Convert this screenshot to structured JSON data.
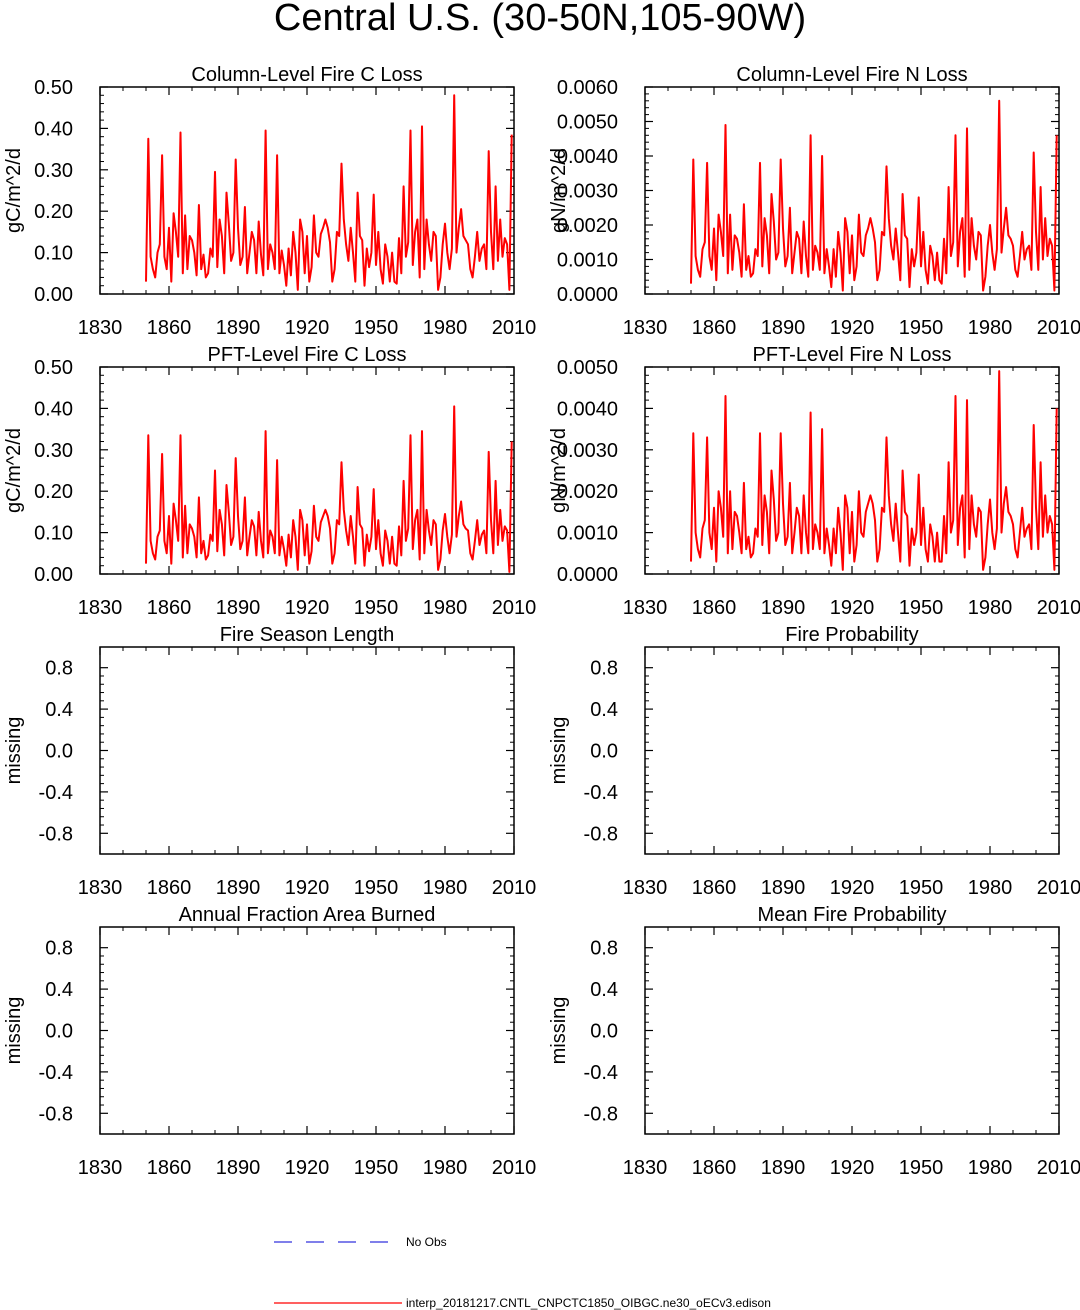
{
  "title": "Central U.S. (30-50N,105-90W)",
  "colors": {
    "model": "#ff0000",
    "obs": "#3333dd",
    "axis": "#000000"
  },
  "legend": {
    "obs_label": "No Obs",
    "model_label": "interp_20181217.CNTL_CNPCTC1850_OIBGC.ne30_oECv3.edison"
  },
  "chart_data": [
    {
      "id": "column-fire-c-loss",
      "type": "line",
      "title": "Column-Level Fire C Loss",
      "ylabel": "gC/m^2/d",
      "xlim": [
        1830,
        2010
      ],
      "ylim": [
        0,
        0.5
      ],
      "xticks": [
        "1830",
        "1860",
        "1890",
        "1920",
        "1950",
        "1980",
        "2010"
      ],
      "yticks": [
        "0.00",
        "0.10",
        "0.20",
        "0.30",
        "0.40",
        "0.50"
      ],
      "x_start": 1850,
      "values": [
        0.03,
        0.375,
        0.09,
        0.06,
        0.04,
        0.1,
        0.12,
        0.335,
        0.09,
        0.06,
        0.16,
        0.03,
        0.195,
        0.15,
        0.09,
        0.39,
        0.05,
        0.19,
        0.06,
        0.14,
        0.13,
        0.1,
        0.045,
        0.215,
        0.06,
        0.095,
        0.04,
        0.05,
        0.11,
        0.09,
        0.295,
        0.065,
        0.18,
        0.14,
        0.05,
        0.245,
        0.17,
        0.08,
        0.1,
        0.325,
        0.16,
        0.07,
        0.09,
        0.21,
        0.05,
        0.1,
        0.15,
        0.13,
        0.05,
        0.175,
        0.095,
        0.045,
        0.395,
        0.06,
        0.12,
        0.1,
        0.06,
        0.335,
        0.05,
        0.105,
        0.07,
        0.02,
        0.11,
        0.045,
        0.15,
        0.1,
        0.01,
        0.18,
        0.15,
        0.05,
        0.14,
        0.03,
        0.065,
        0.19,
        0.1,
        0.09,
        0.145,
        0.16,
        0.18,
        0.16,
        0.125,
        0.03,
        0.06,
        0.15,
        0.14,
        0.315,
        0.18,
        0.12,
        0.08,
        0.16,
        0.1,
        0.03,
        0.245,
        0.14,
        0.13,
        0.02,
        0.11,
        0.065,
        0.1,
        0.24,
        0.07,
        0.15,
        0.06,
        0.025,
        0.12,
        0.09,
        0.03,
        0.1,
        0.03,
        0.025,
        0.135,
        0.05,
        0.26,
        0.09,
        0.125,
        0.395,
        0.07,
        0.15,
        0.18,
        0.04,
        0.405,
        0.06,
        0.18,
        0.12,
        0.08,
        0.15,
        0.14,
        0.01,
        0.04,
        0.12,
        0.17,
        0.1,
        0.06,
        0.11,
        0.48,
        0.1,
        0.16,
        0.205,
        0.14,
        0.13,
        0.12,
        0.06,
        0.04,
        0.09,
        0.15,
        0.08,
        0.11,
        0.12,
        0.06,
        0.345,
        0.15,
        0.06,
        0.26,
        0.08,
        0.18,
        0.09,
        0.135,
        0.12,
        0.01,
        0.385
      ]
    },
    {
      "id": "column-fire-n-loss",
      "type": "line",
      "title": "Column-Level Fire N Loss",
      "ylabel": "gN/m^2/d",
      "xlim": [
        1830,
        2010
      ],
      "ylim": [
        0,
        0.006
      ],
      "xticks": [
        "1830",
        "1860",
        "1890",
        "1920",
        "1950",
        "1980",
        "2010"
      ],
      "yticks": [
        "0.0000",
        "0.0010",
        "0.0020",
        "0.0030",
        "0.0040",
        "0.0050",
        "0.0060"
      ],
      "x_start": 1850,
      "values": [
        0.0003,
        0.0039,
        0.0011,
        0.0007,
        0.0005,
        0.0013,
        0.0015,
        0.0038,
        0.0011,
        0.0007,
        0.0019,
        0.0004,
        0.0023,
        0.0018,
        0.0011,
        0.0049,
        0.0006,
        0.0023,
        0.0007,
        0.0017,
        0.0016,
        0.0012,
        0.0005,
        0.0026,
        0.0007,
        0.0011,
        0.0005,
        0.0006,
        0.0013,
        0.0011,
        0.0038,
        0.0008,
        0.0022,
        0.0017,
        0.0006,
        0.0029,
        0.0021,
        0.001,
        0.0012,
        0.0039,
        0.0019,
        0.0008,
        0.0011,
        0.0025,
        0.0006,
        0.0012,
        0.0018,
        0.0016,
        0.0006,
        0.0021,
        0.0011,
        0.0005,
        0.0046,
        0.0007,
        0.0014,
        0.0012,
        0.0007,
        0.004,
        0.0006,
        0.0013,
        0.0008,
        0.0002,
        0.0013,
        0.0005,
        0.0018,
        0.0012,
        0.0001,
        0.0022,
        0.0018,
        0.0006,
        0.0017,
        0.0004,
        0.0008,
        0.0023,
        0.0012,
        0.0011,
        0.0017,
        0.0019,
        0.0022,
        0.0019,
        0.0015,
        0.0004,
        0.0007,
        0.0018,
        0.0017,
        0.0037,
        0.0022,
        0.0014,
        0.001,
        0.0019,
        0.0012,
        0.0004,
        0.0029,
        0.0017,
        0.0016,
        0.0002,
        0.0013,
        0.0008,
        0.0012,
        0.0028,
        0.0008,
        0.0018,
        0.0007,
        0.0003,
        0.0014,
        0.0011,
        0.0004,
        0.0012,
        0.0004,
        0.0003,
        0.0016,
        0.0006,
        0.0031,
        0.0011,
        0.0015,
        0.0046,
        0.0008,
        0.0018,
        0.0022,
        0.0005,
        0.0048,
        0.0007,
        0.0022,
        0.0014,
        0.001,
        0.0018,
        0.0017,
        0.0001,
        0.0005,
        0.0014,
        0.002,
        0.0012,
        0.0007,
        0.0013,
        0.0056,
        0.0012,
        0.0019,
        0.0025,
        0.0017,
        0.0016,
        0.0014,
        0.0007,
        0.0005,
        0.0011,
        0.0018,
        0.001,
        0.0013,
        0.0014,
        0.0007,
        0.0041,
        0.0018,
        0.0007,
        0.0031,
        0.001,
        0.0022,
        0.0011,
        0.0016,
        0.0014,
        0.0001,
        0.0046
      ]
    },
    {
      "id": "pft-fire-c-loss",
      "type": "line",
      "title": "PFT-Level Fire C Loss",
      "ylabel": "gC/m^2/d",
      "xlim": [
        1830,
        2010
      ],
      "ylim": [
        0,
        0.5
      ],
      "xticks": [
        "1830",
        "1860",
        "1890",
        "1920",
        "1950",
        "1980",
        "2010"
      ],
      "yticks": [
        "0.00",
        "0.10",
        "0.20",
        "0.30",
        "0.40",
        "0.50"
      ],
      "x_start": 1850,
      "values": [
        0.025,
        0.335,
        0.08,
        0.05,
        0.035,
        0.09,
        0.105,
        0.29,
        0.08,
        0.05,
        0.14,
        0.025,
        0.17,
        0.13,
        0.08,
        0.335,
        0.04,
        0.165,
        0.05,
        0.12,
        0.11,
        0.09,
        0.04,
        0.185,
        0.05,
        0.08,
        0.035,
        0.045,
        0.095,
        0.08,
        0.25,
        0.055,
        0.155,
        0.12,
        0.045,
        0.215,
        0.15,
        0.07,
        0.09,
        0.28,
        0.14,
        0.06,
        0.08,
        0.185,
        0.045,
        0.09,
        0.13,
        0.115,
        0.045,
        0.15,
        0.08,
        0.04,
        0.345,
        0.05,
        0.105,
        0.09,
        0.05,
        0.275,
        0.045,
        0.09,
        0.06,
        0.02,
        0.095,
        0.04,
        0.13,
        0.09,
        0.01,
        0.155,
        0.13,
        0.045,
        0.12,
        0.025,
        0.055,
        0.165,
        0.09,
        0.08,
        0.125,
        0.14,
        0.155,
        0.14,
        0.11,
        0.025,
        0.05,
        0.13,
        0.12,
        0.27,
        0.155,
        0.105,
        0.07,
        0.14,
        0.09,
        0.025,
        0.21,
        0.12,
        0.11,
        0.02,
        0.095,
        0.055,
        0.09,
        0.205,
        0.06,
        0.13,
        0.05,
        0.02,
        0.105,
        0.08,
        0.025,
        0.09,
        0.025,
        0.02,
        0.115,
        0.045,
        0.225,
        0.08,
        0.11,
        0.335,
        0.06,
        0.13,
        0.155,
        0.035,
        0.345,
        0.05,
        0.155,
        0.105,
        0.07,
        0.13,
        0.12,
        0.01,
        0.035,
        0.105,
        0.145,
        0.09,
        0.05,
        0.095,
        0.405,
        0.09,
        0.14,
        0.175,
        0.12,
        0.11,
        0.105,
        0.05,
        0.035,
        0.08,
        0.13,
        0.07,
        0.095,
        0.105,
        0.05,
        0.295,
        0.13,
        0.05,
        0.225,
        0.07,
        0.155,
        0.08,
        0.115,
        0.105,
        0.005,
        0.32
      ]
    },
    {
      "id": "pft-fire-n-loss",
      "type": "line",
      "title": "PFT-Level Fire N Loss",
      "ylabel": "gN/m^2/d",
      "xlim": [
        1830,
        2010
      ],
      "ylim": [
        0,
        0.005
      ],
      "xticks": [
        "1830",
        "1860",
        "1890",
        "1920",
        "1950",
        "1980",
        "2010"
      ],
      "yticks": [
        "0.0000",
        "0.0010",
        "0.0020",
        "0.0030",
        "0.0040",
        "0.0050"
      ],
      "x_start": 1850,
      "values": [
        0.0003,
        0.0034,
        0.001,
        0.0006,
        0.0004,
        0.0011,
        0.0013,
        0.0033,
        0.001,
        0.0006,
        0.0016,
        0.0003,
        0.002,
        0.0016,
        0.0009,
        0.0043,
        0.0005,
        0.002,
        0.0006,
        0.0015,
        0.0014,
        0.001,
        0.0005,
        0.0022,
        0.0006,
        0.0009,
        0.0004,
        0.0005,
        0.0011,
        0.0009,
        0.0034,
        0.0007,
        0.0019,
        0.0015,
        0.0005,
        0.0025,
        0.0018,
        0.0008,
        0.001,
        0.0034,
        0.0017,
        0.0007,
        0.0009,
        0.0022,
        0.0005,
        0.001,
        0.0016,
        0.0014,
        0.0005,
        0.0019,
        0.001,
        0.0005,
        0.0039,
        0.0006,
        0.0012,
        0.001,
        0.0006,
        0.0035,
        0.0005,
        0.0011,
        0.0007,
        0.0002,
        0.0011,
        0.0005,
        0.0016,
        0.001,
        0.0001,
        0.0019,
        0.0016,
        0.0005,
        0.0015,
        0.0003,
        0.0007,
        0.002,
        0.001,
        0.0009,
        0.0015,
        0.0017,
        0.0019,
        0.0017,
        0.0013,
        0.0003,
        0.0006,
        0.0016,
        0.0015,
        0.0033,
        0.0019,
        0.0012,
        0.0008,
        0.0017,
        0.001,
        0.0003,
        0.0025,
        0.0015,
        0.0014,
        0.0002,
        0.0011,
        0.0007,
        0.001,
        0.0024,
        0.0007,
        0.0016,
        0.0006,
        0.0003,
        0.0012,
        0.0009,
        0.0003,
        0.001,
        0.0003,
        0.0003,
        0.0014,
        0.0005,
        0.0027,
        0.001,
        0.0013,
        0.0043,
        0.0007,
        0.0016,
        0.0019,
        0.0004,
        0.0042,
        0.0006,
        0.0019,
        0.0012,
        0.0009,
        0.0016,
        0.0015,
        0.0001,
        0.0004,
        0.0012,
        0.0018,
        0.001,
        0.0006,
        0.0011,
        0.0049,
        0.001,
        0.0017,
        0.0021,
        0.0015,
        0.0014,
        0.0012,
        0.0006,
        0.0004,
        0.001,
        0.0016,
        0.0009,
        0.0011,
        0.0012,
        0.0006,
        0.0036,
        0.0016,
        0.0006,
        0.0027,
        0.0009,
        0.0019,
        0.001,
        0.0014,
        0.0012,
        0.0001,
        0.004
      ]
    },
    {
      "id": "fire-season-length",
      "type": "line",
      "title": "Fire Season Length",
      "ylabel": "missing",
      "xlim": [
        1830,
        2010
      ],
      "ylim": [
        -1,
        1
      ],
      "xticks": [
        "1830",
        "1860",
        "1890",
        "1920",
        "1950",
        "1980",
        "2010"
      ],
      "yticks": [
        "-0.8",
        "-0.4",
        "0.0",
        "0.4",
        "0.8"
      ],
      "values": []
    },
    {
      "id": "fire-probability",
      "type": "line",
      "title": "Fire Probability",
      "ylabel": "missing",
      "xlim": [
        1830,
        2010
      ],
      "ylim": [
        -1,
        1
      ],
      "xticks": [
        "1830",
        "1860",
        "1890",
        "1920",
        "1950",
        "1980",
        "2010"
      ],
      "yticks": [
        "-0.8",
        "-0.4",
        "0.0",
        "0.4",
        "0.8"
      ],
      "values": []
    },
    {
      "id": "annual-fraction-area-burned",
      "type": "line",
      "title": "Annual Fraction Area Burned",
      "ylabel": "missing",
      "xlim": [
        1830,
        2010
      ],
      "ylim": [
        -1,
        1
      ],
      "xticks": [
        "1830",
        "1860",
        "1890",
        "1920",
        "1950",
        "1980",
        "2010"
      ],
      "yticks": [
        "-0.8",
        "-0.4",
        "0.0",
        "0.4",
        "0.8"
      ],
      "values": []
    },
    {
      "id": "mean-fire-probability",
      "type": "line",
      "title": "Mean Fire Probability",
      "ylabel": "missing",
      "xlim": [
        1830,
        2010
      ],
      "ylim": [
        -1,
        1
      ],
      "xticks": [
        "1830",
        "1860",
        "1890",
        "1920",
        "1950",
        "1980",
        "2010"
      ],
      "yticks": [
        "-0.8",
        "-0.4",
        "0.0",
        "0.4",
        "0.8"
      ],
      "values": []
    }
  ]
}
